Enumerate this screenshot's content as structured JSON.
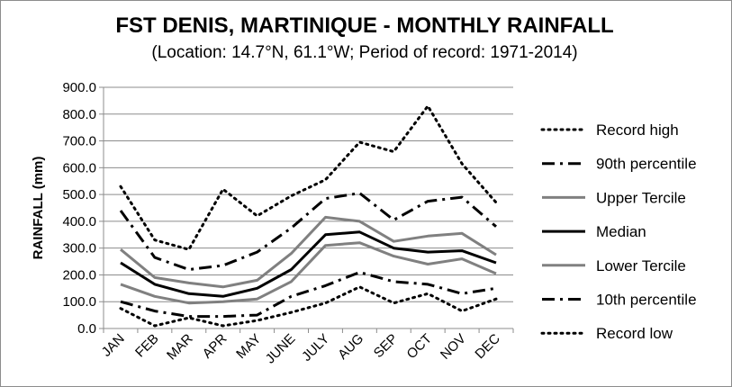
{
  "chart_data": {
    "type": "line",
    "title": "FST DENIS, MARTINIQUE - MONTHLY RAINFALL",
    "subtitle": "(Location: 14.7°N, 61.1°W; Period of record: 1971-2014)",
    "xlabel": "",
    "ylabel": "RAINFALL (mm)",
    "ylim": [
      0,
      900
    ],
    "ytick_step": 100,
    "grid": true,
    "legend_position": "right",
    "categories": [
      "JAN",
      "FEB",
      "MAR",
      "APR",
      "MAY",
      "JUNE",
      "JULY",
      "AUG",
      "SEP",
      "OCT",
      "NOV",
      "DEC"
    ],
    "series": [
      {
        "name": "Record high",
        "style": "dotted",
        "color": "#000000",
        "values": [
          530,
          330,
          295,
          520,
          420,
          495,
          555,
          695,
          660,
          830,
          615,
          470
        ]
      },
      {
        "name": "90th percentile",
        "style": "dashdot",
        "color": "#000000",
        "values": [
          440,
          265,
          220,
          235,
          285,
          375,
          485,
          505,
          405,
          475,
          490,
          380
        ]
      },
      {
        "name": "Upper Tercile",
        "style": "solid-gray",
        "color": "#808080",
        "values": [
          295,
          190,
          170,
          155,
          180,
          280,
          415,
          400,
          325,
          345,
          355,
          275
        ]
      },
      {
        "name": "Median",
        "style": "solid-black",
        "color": "#000000",
        "values": [
          245,
          165,
          130,
          120,
          150,
          220,
          350,
          360,
          300,
          285,
          290,
          245
        ]
      },
      {
        "name": "Lower Tercile",
        "style": "solid-gray",
        "color": "#808080",
        "values": [
          165,
          120,
          95,
          100,
          110,
          175,
          310,
          320,
          270,
          240,
          260,
          205
        ]
      },
      {
        "name": "10th percentile",
        "style": "dashdot",
        "color": "#000000",
        "values": [
          100,
          65,
          45,
          45,
          50,
          120,
          160,
          210,
          175,
          165,
          130,
          150
        ]
      },
      {
        "name": "Record low",
        "style": "dotted",
        "color": "#000000",
        "values": [
          75,
          10,
          40,
          10,
          30,
          60,
          95,
          155,
          95,
          130,
          65,
          110
        ]
      }
    ]
  }
}
